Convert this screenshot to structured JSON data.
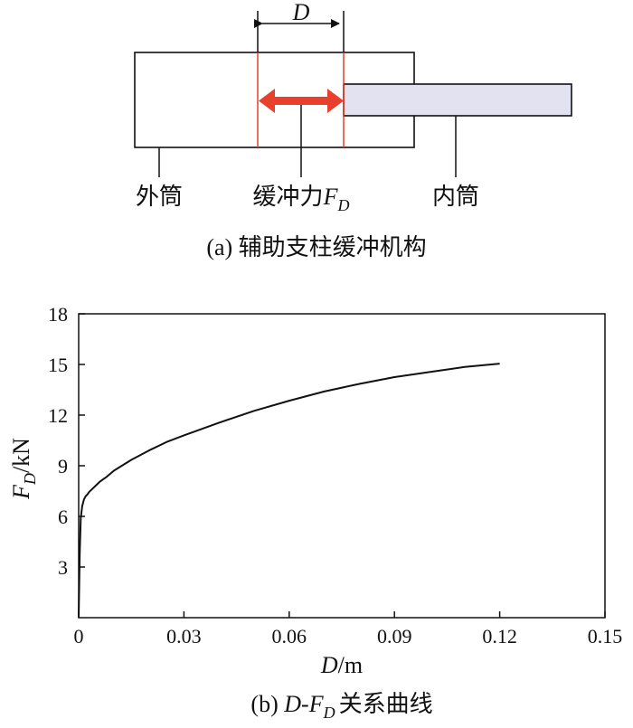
{
  "diagram": {
    "dimension_symbol": "D",
    "labels": {
      "outer_tube": "外筒",
      "buffer_force_text": "缓冲力",
      "buffer_force_symbol": "F",
      "buffer_force_sub": "D",
      "inner_tube": "内筒"
    },
    "caption": {
      "prefix": "(a) ",
      "text": "辅助支柱缓冲机构"
    },
    "colors": {
      "arrow": "#e8402d",
      "boundary_lines": "#e8402d",
      "inner_tube_fill": "#e2e2f0",
      "outline": "#111111"
    }
  },
  "chart_data": {
    "type": "line",
    "xlabel": {
      "symbol": "D",
      "unit": "/m"
    },
    "ylabel": {
      "symbol": "F",
      "sub": "D",
      "unit": "/kN"
    },
    "xlim": [
      0,
      0.15
    ],
    "ylim": [
      0,
      18
    ],
    "xticks": [
      "0",
      "0.03",
      "0.06",
      "0.09",
      "0.12",
      "0.15"
    ],
    "yticks": [
      "3",
      "6",
      "9",
      "12",
      "15",
      "18"
    ],
    "grid": false,
    "series": [
      {
        "x": [
          0,
          0.0003,
          0.0006,
          0.001,
          0.0015,
          0.002,
          0.0025,
          0.003,
          0.004,
          0.006,
          0.008,
          0.01,
          0.015,
          0.02,
          0.025,
          0.03,
          0.04,
          0.05,
          0.06,
          0.07,
          0.08,
          0.09,
          0.1,
          0.11,
          0.12
        ],
        "y": [
          0,
          3.8,
          5.9,
          6.6,
          7.0,
          7.2,
          7.3,
          7.45,
          7.65,
          8.05,
          8.35,
          8.7,
          9.35,
          9.9,
          10.4,
          10.8,
          11.55,
          12.25,
          12.85,
          13.4,
          13.85,
          14.25,
          14.55,
          14.85,
          15.05
        ],
        "color": "#111111"
      }
    ],
    "caption": {
      "prefix": "(b) ",
      "x_symbol": "D",
      "dash": "-",
      "f_symbol": "F",
      "f_sub": "D",
      "text": "关系曲线"
    }
  }
}
